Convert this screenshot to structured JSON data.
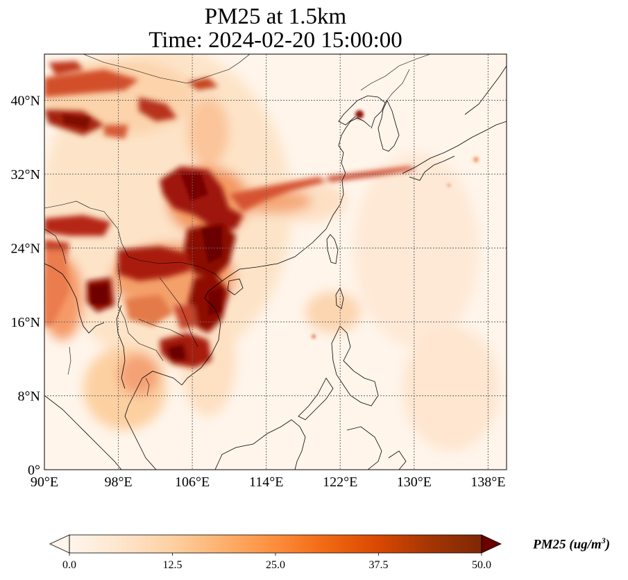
{
  "title": {
    "line1": "PM25 at 1.5km",
    "line2": "Time: 2024-02-20 15:00:00"
  },
  "map": {
    "lon_range": [
      90,
      140
    ],
    "lat_range": [
      0,
      45
    ],
    "lon_ticks": [
      "90°E",
      "98°E",
      "106°E",
      "114°E",
      "122°E",
      "130°E",
      "138°E"
    ],
    "lat_ticks": [
      "0°",
      "8°N",
      "16°N",
      "24°N",
      "32°N",
      "40°N"
    ],
    "gridlines": true
  },
  "colorbar": {
    "label": "PM25 (ug/m",
    "label_sup": "3",
    "label_close": ")",
    "ticks": [
      "0.0",
      "12.5",
      "25.0",
      "37.5",
      "50.0"
    ],
    "min": 0,
    "max": 50,
    "extend": "both",
    "colormap": [
      "#fff5eb",
      "#fee6ce",
      "#fdd0a2",
      "#fdae6b",
      "#fd8d3c",
      "#f16913",
      "#d94801",
      "#a63603",
      "#7f2704",
      "#6b0000"
    ]
  }
}
